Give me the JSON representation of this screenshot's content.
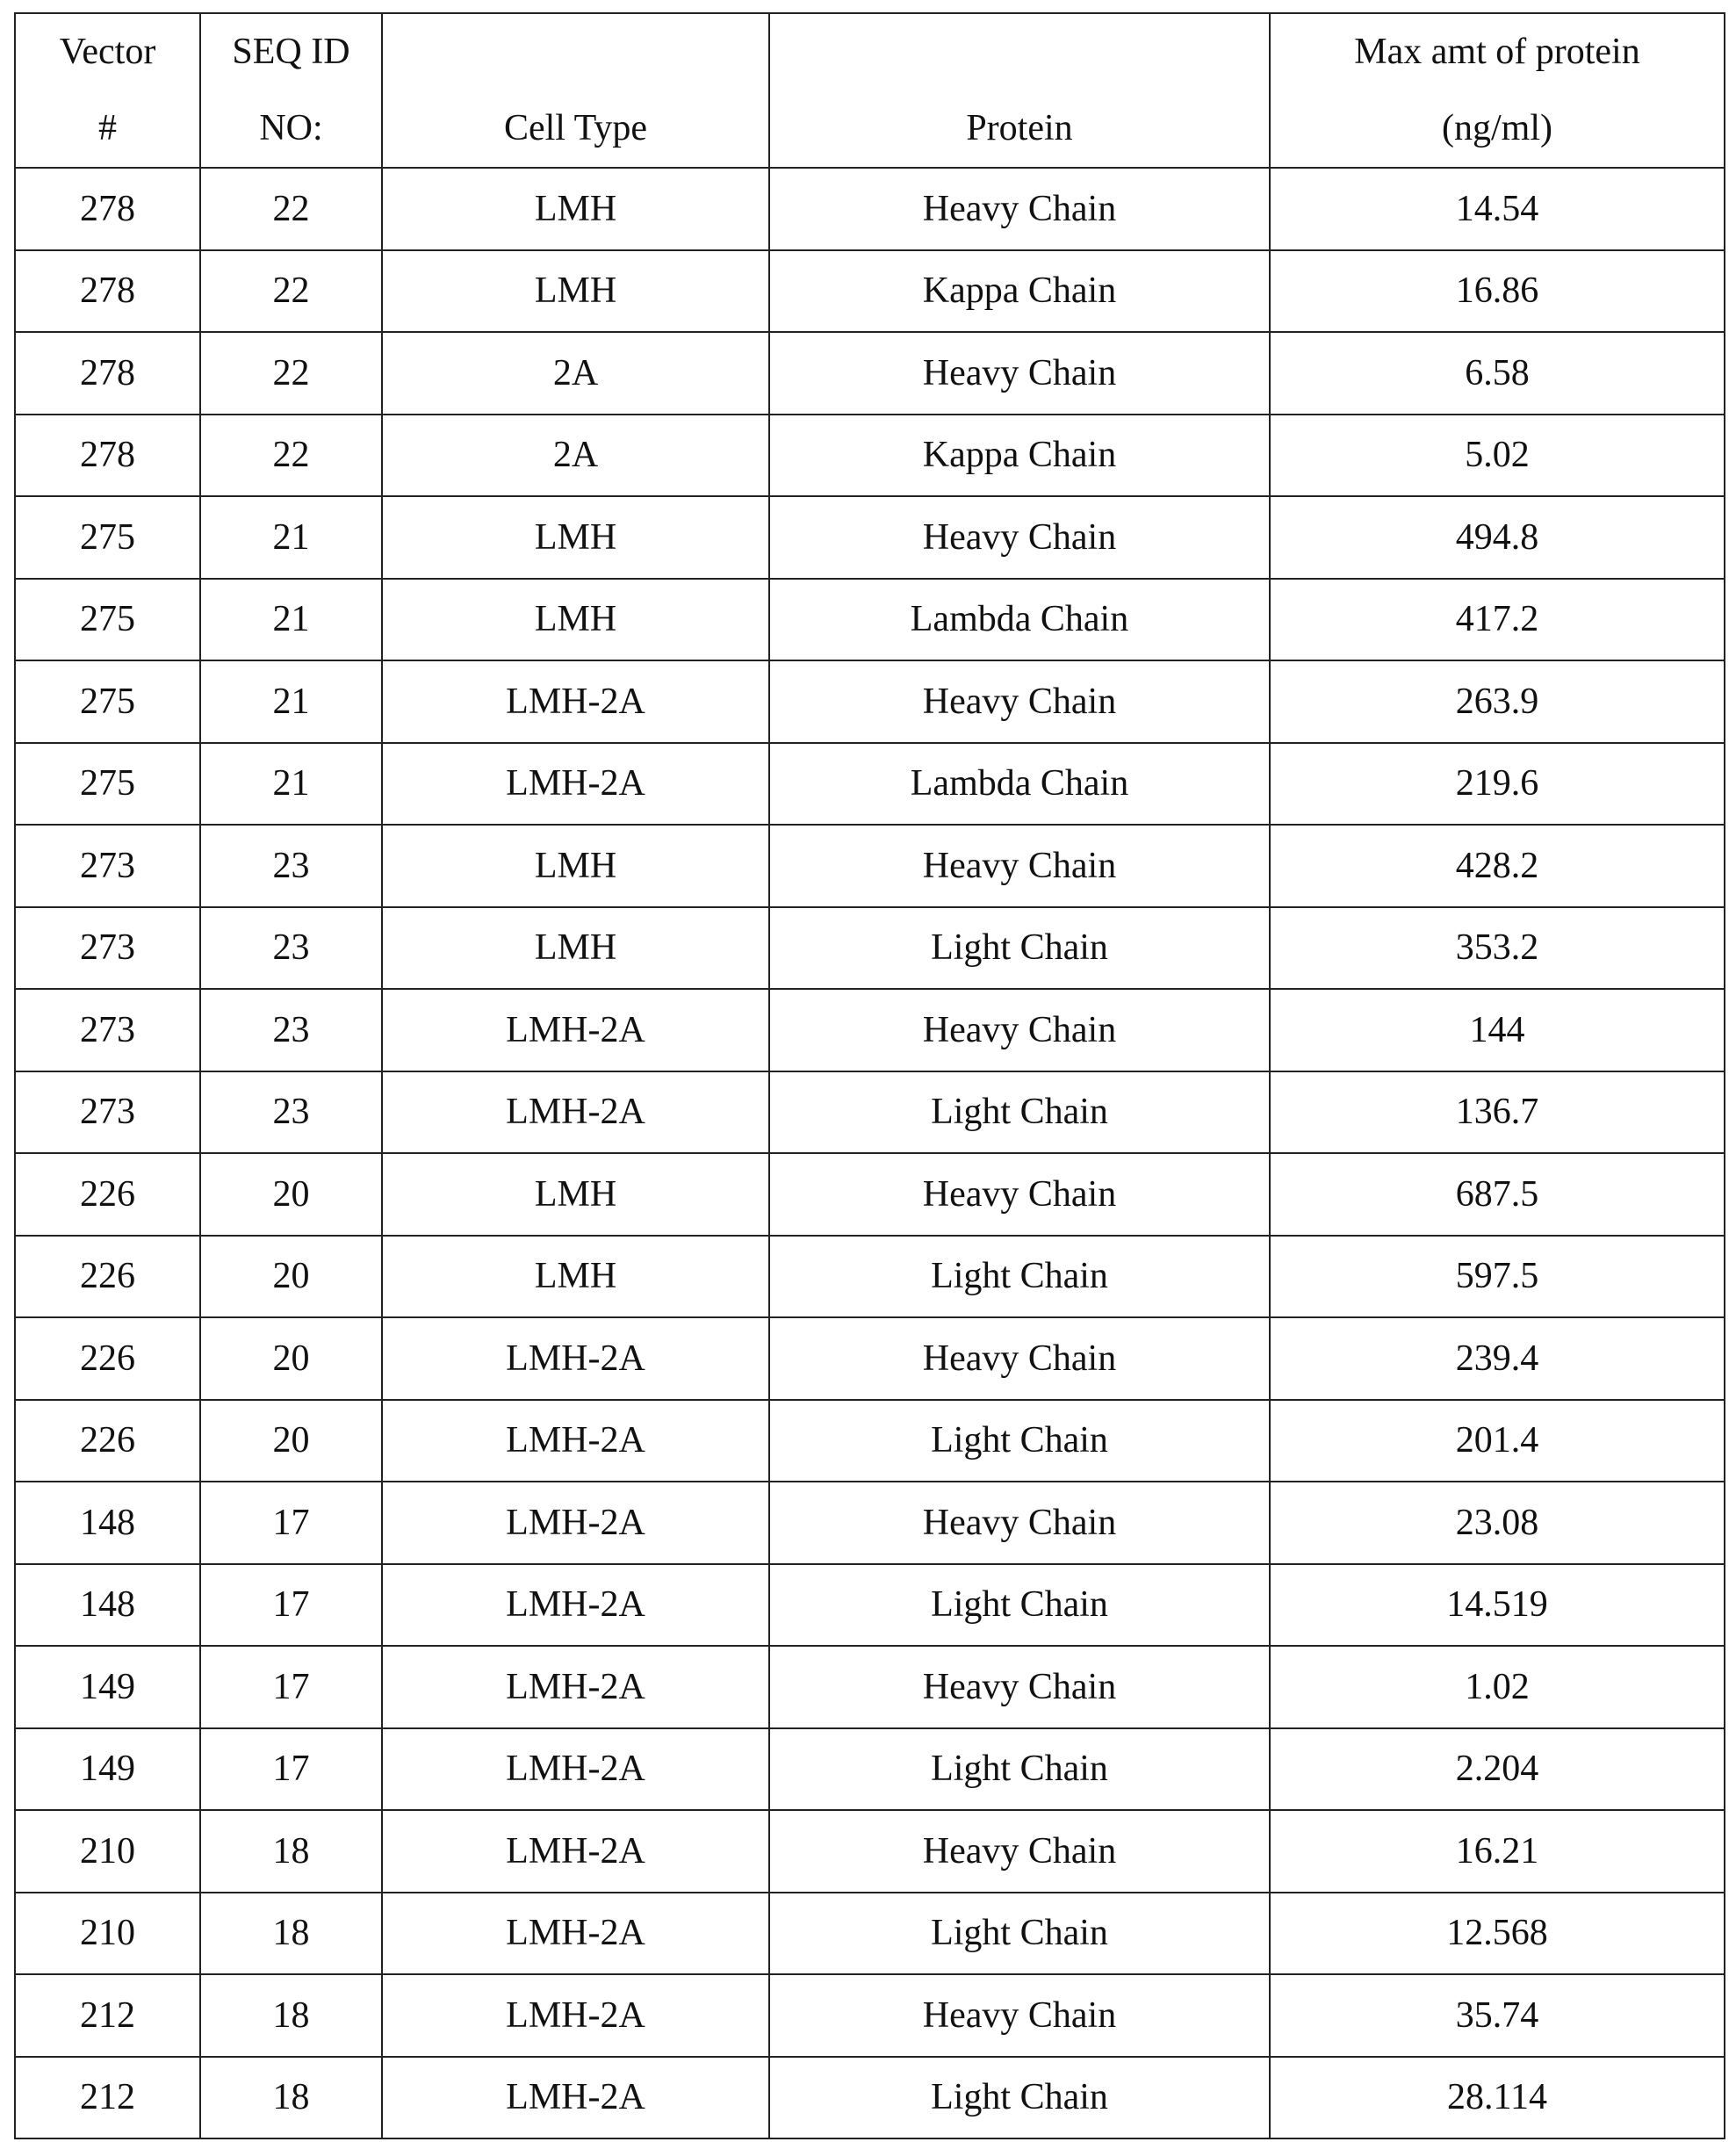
{
  "table": {
    "headers": [
      [
        "Vector",
        "#"
      ],
      [
        "SEQ ID",
        "NO:"
      ],
      [
        "",
        "Cell Type"
      ],
      [
        "",
        "Protein"
      ],
      [
        "Max amt of protein",
        "(ng/ml)"
      ]
    ],
    "rows": [
      [
        "278",
        "22",
        "LMH",
        "Heavy Chain",
        "14.54"
      ],
      [
        "278",
        "22",
        "LMH",
        "Kappa Chain",
        "16.86"
      ],
      [
        "278",
        "22",
        "2A",
        "Heavy Chain",
        "6.58"
      ],
      [
        "278",
        "22",
        "2A",
        "Kappa Chain",
        "5.02"
      ],
      [
        "275",
        "21",
        "LMH",
        "Heavy Chain",
        "494.8"
      ],
      [
        "275",
        "21",
        "LMH",
        "Lambda Chain",
        "417.2"
      ],
      [
        "275",
        "21",
        "LMH-2A",
        "Heavy Chain",
        "263.9"
      ],
      [
        "275",
        "21",
        "LMH-2A",
        "Lambda Chain",
        "219.6"
      ],
      [
        "273",
        "23",
        "LMH",
        "Heavy Chain",
        "428.2"
      ],
      [
        "273",
        "23",
        "LMH",
        "Light Chain",
        "353.2"
      ],
      [
        "273",
        "23",
        "LMH-2A",
        "Heavy Chain",
        "144"
      ],
      [
        "273",
        "23",
        "LMH-2A",
        "Light Chain",
        "136.7"
      ],
      [
        "226",
        "20",
        "LMH",
        "Heavy Chain",
        "687.5"
      ],
      [
        "226",
        "20",
        "LMH",
        "Light Chain",
        "597.5"
      ],
      [
        "226",
        "20",
        "LMH-2A",
        "Heavy Chain",
        "239.4"
      ],
      [
        "226",
        "20",
        "LMH-2A",
        "Light Chain",
        "201.4"
      ],
      [
        "148",
        "17",
        "LMH-2A",
        "Heavy Chain",
        "23.08"
      ],
      [
        "148",
        "17",
        "LMH-2A",
        "Light Chain",
        "14.519"
      ],
      [
        "149",
        "17",
        "LMH-2A",
        "Heavy Chain",
        "1.02"
      ],
      [
        "149",
        "17",
        "LMH-2A",
        "Light Chain",
        "2.204"
      ],
      [
        "210",
        "18",
        "LMH-2A",
        "Heavy Chain",
        "16.21"
      ],
      [
        "210",
        "18",
        "LMH-2A",
        "Light Chain",
        "12.568"
      ],
      [
        "212",
        "18",
        "LMH-2A",
        "Heavy Chain",
        "35.74"
      ],
      [
        "212",
        "18",
        "LMH-2A",
        "Light Chain",
        "28.114"
      ]
    ]
  }
}
